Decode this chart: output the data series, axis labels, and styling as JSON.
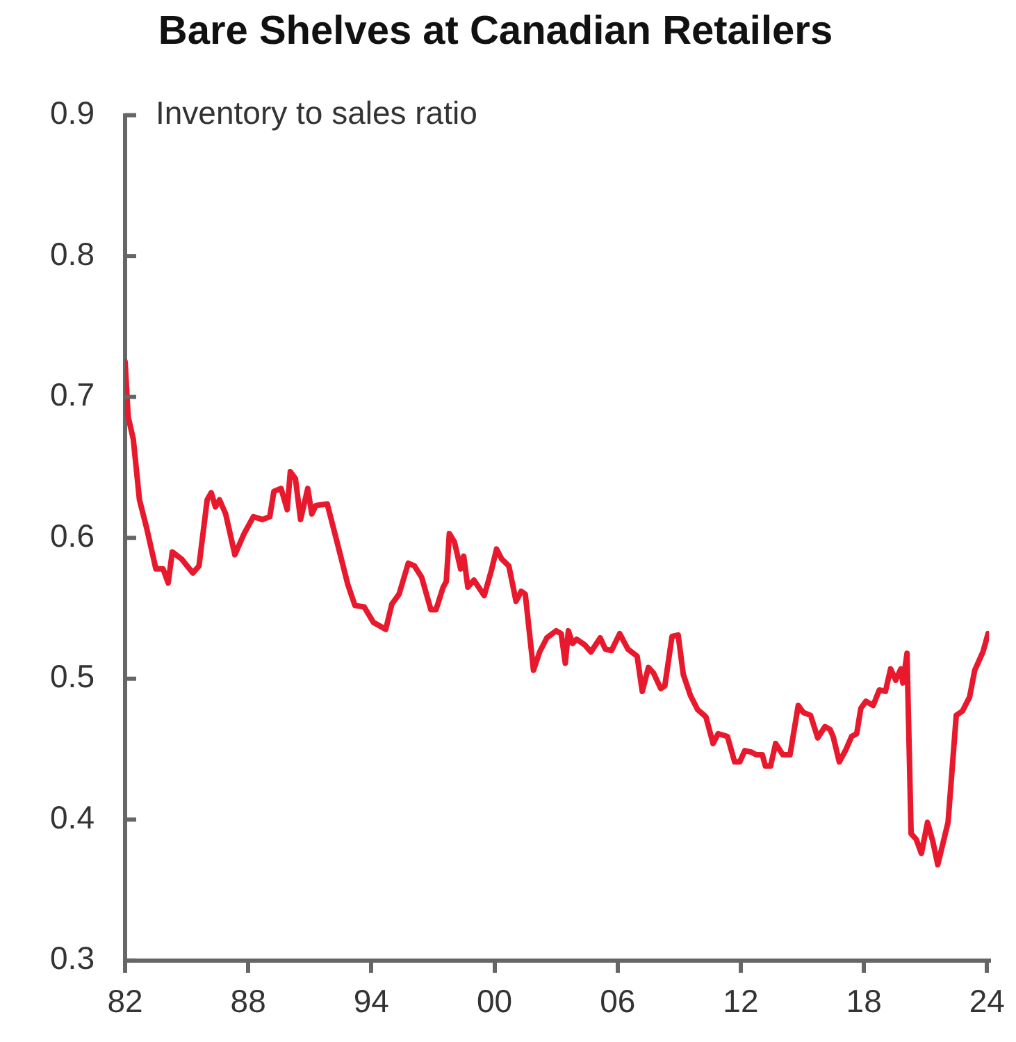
{
  "chart_data": {
    "type": "line",
    "title": "Bare Shelves at Canadian Retailers",
    "ylabel": "Inventory to sales ratio",
    "color": "#e8192c",
    "x": [
      1982.0,
      1982.15,
      1982.4,
      1982.7,
      1983.05,
      1983.5,
      1983.85,
      1984.1,
      1984.3,
      1984.75,
      1985.3,
      1985.6,
      1986.0,
      1986.2,
      1986.4,
      1986.6,
      1986.9,
      1987.35,
      1987.8,
      1988.25,
      1988.7,
      1989.05,
      1989.25,
      1989.6,
      1989.9,
      1990.05,
      1990.3,
      1990.55,
      1990.9,
      1991.1,
      1991.3,
      1991.85,
      1992.4,
      1992.85,
      1993.2,
      1993.65,
      1994.1,
      1994.7,
      1995.0,
      1995.35,
      1995.8,
      1996.1,
      1996.45,
      1996.9,
      1997.15,
      1997.5,
      1997.65,
      1997.8,
      1998.05,
      1998.35,
      1998.5,
      1998.7,
      1999.0,
      1999.5,
      1999.85,
      2000.1,
      2000.35,
      2000.7,
      2001.05,
      2001.3,
      2001.5,
      2001.9,
      2002.2,
      2002.55,
      2003.0,
      2003.25,
      2003.45,
      2003.6,
      2003.8,
      2004.0,
      2004.4,
      2004.7,
      2005.15,
      2005.4,
      2005.7,
      2006.1,
      2006.5,
      2006.95,
      2007.2,
      2007.5,
      2007.75,
      2008.1,
      2008.3,
      2008.65,
      2008.95,
      2009.2,
      2009.55,
      2009.9,
      2010.3,
      2010.65,
      2010.9,
      2011.35,
      2011.7,
      2011.95,
      2012.2,
      2012.5,
      2012.75,
      2013.05,
      2013.2,
      2013.45,
      2013.7,
      2014.05,
      2014.4,
      2014.8,
      2015.05,
      2015.4,
      2015.75,
      2016.1,
      2016.35,
      2016.5,
      2016.8,
      2017.1,
      2017.4,
      2017.65,
      2017.85,
      2018.1,
      2018.45,
      2018.75,
      2019.05,
      2019.3,
      2019.55,
      2019.8,
      2019.9,
      2020.1,
      2020.3,
      2020.55,
      2020.8,
      2021.1,
      2021.35,
      2021.6,
      2021.8,
      2022.1,
      2022.5,
      2022.8,
      2023.15,
      2023.4,
      2023.8,
      2024.05
    ],
    "values": [
      0.725,
      0.686,
      0.67,
      0.627,
      0.607,
      0.578,
      0.578,
      0.568,
      0.59,
      0.585,
      0.575,
      0.58,
      0.627,
      0.632,
      0.622,
      0.627,
      0.617,
      0.588,
      0.603,
      0.615,
      0.613,
      0.615,
      0.633,
      0.635,
      0.62,
      0.647,
      0.642,
      0.613,
      0.635,
      0.617,
      0.623,
      0.624,
      0.593,
      0.567,
      0.552,
      0.551,
      0.54,
      0.535,
      0.553,
      0.56,
      0.582,
      0.58,
      0.572,
      0.549,
      0.549,
      0.565,
      0.569,
      0.603,
      0.597,
      0.578,
      0.587,
      0.565,
      0.57,
      0.559,
      0.577,
      0.592,
      0.585,
      0.58,
      0.555,
      0.562,
      0.56,
      0.506,
      0.519,
      0.529,
      0.534,
      0.532,
      0.511,
      0.534,
      0.525,
      0.528,
      0.524,
      0.519,
      0.529,
      0.521,
      0.52,
      0.532,
      0.521,
      0.516,
      0.491,
      0.508,
      0.504,
      0.493,
      0.495,
      0.53,
      0.531,
      0.503,
      0.488,
      0.478,
      0.473,
      0.454,
      0.461,
      0.459,
      0.441,
      0.441,
      0.449,
      0.448,
      0.446,
      0.446,
      0.438,
      0.438,
      0.454,
      0.446,
      0.446,
      0.481,
      0.476,
      0.474,
      0.458,
      0.466,
      0.464,
      0.459,
      0.441,
      0.449,
      0.459,
      0.461,
      0.479,
      0.484,
      0.481,
      0.492,
      0.491,
      0.507,
      0.499,
      0.507,
      0.497,
      0.518,
      0.39,
      0.386,
      0.376,
      0.398,
      0.385,
      0.368,
      0.38,
      0.398,
      0.474,
      0.477,
      0.487,
      0.506,
      0.519,
      0.532
    ],
    "xlim": [
      1982,
      2024.1
    ],
    "ylim": [
      0.3,
      0.9
    ],
    "xticks": [
      {
        "value": 1982,
        "label": "82"
      },
      {
        "value": 1988,
        "label": "88"
      },
      {
        "value": 1994,
        "label": "94"
      },
      {
        "value": 2000,
        "label": "00"
      },
      {
        "value": 2006,
        "label": "06"
      },
      {
        "value": 2012,
        "label": "12"
      },
      {
        "value": 2018,
        "label": "18"
      },
      {
        "value": 2024,
        "label": "24"
      }
    ],
    "yticks": [
      0.3,
      0.4,
      0.5,
      0.6,
      0.7,
      0.8,
      0.9
    ]
  }
}
